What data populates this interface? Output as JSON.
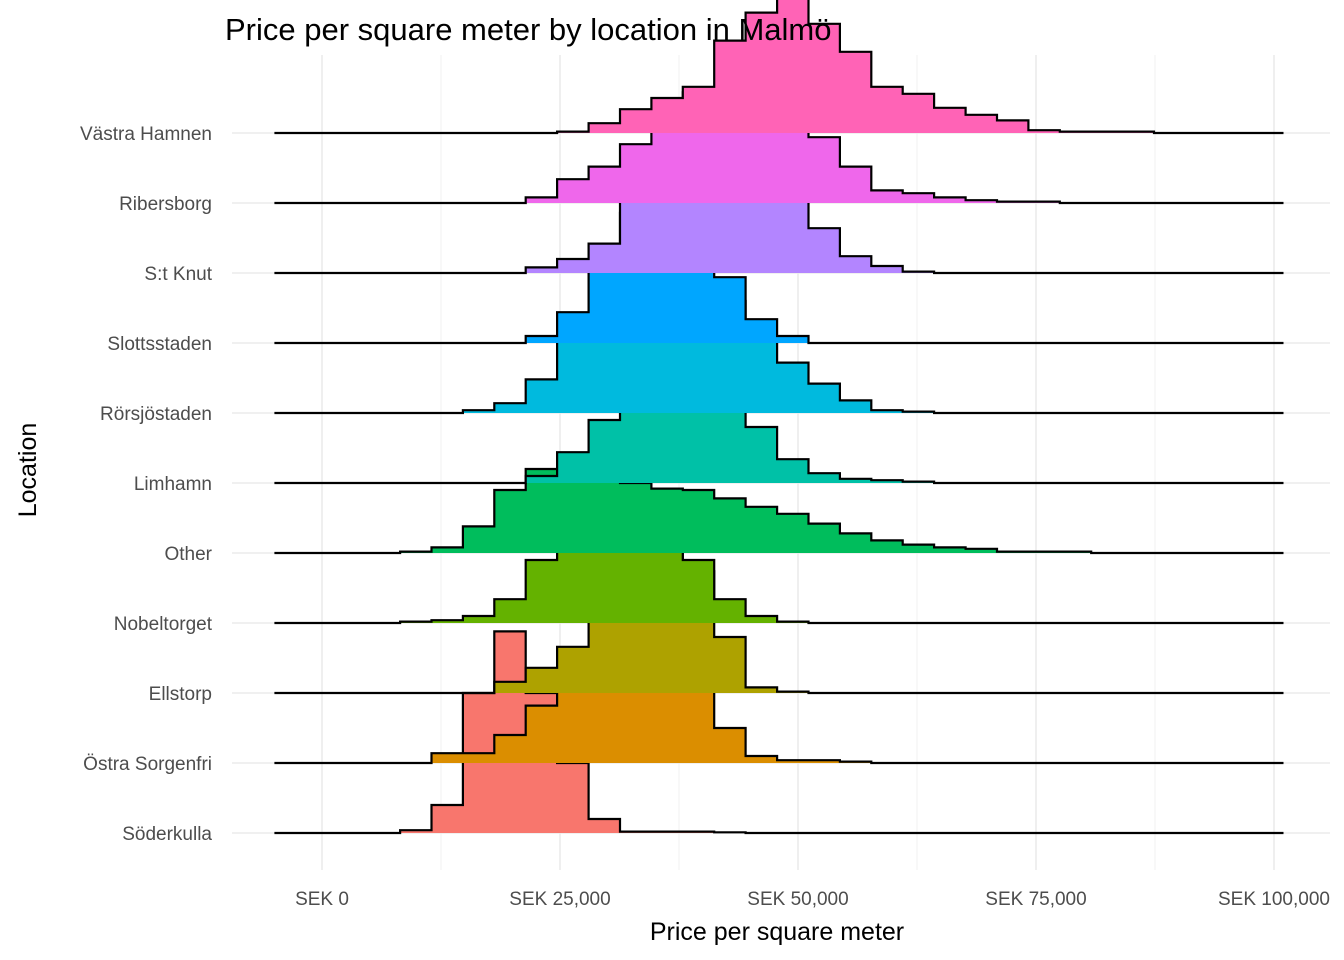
{
  "chart_data": {
    "type": "ridgeline-histogram",
    "title": "Price per square meter by location in Malmö",
    "xlabel": "Price per square meter",
    "ylabel": "Location",
    "x_ticks": [
      0,
      25000,
      50000,
      75000,
      100000
    ],
    "x_tick_labels": [
      "SEK 0",
      "SEK 25,000",
      "SEK 50,000",
      "SEK 75,000",
      "SEK 100,000"
    ],
    "xlim": [
      -5000,
      101000
    ],
    "grid": true,
    "legend": "none",
    "bin_width": 3300,
    "bin_start": -5000,
    "series": [
      {
        "name": "Söderkulla",
        "color": "#F8766D",
        "values": [
          0,
          0,
          0,
          0,
          0.02,
          0.2,
          1.0,
          1.44,
          1.0,
          0.5,
          0.1,
          0.01,
          0.01,
          0.01,
          0.005,
          0,
          0,
          0,
          0,
          0,
          0,
          0,
          0,
          0,
          0,
          0,
          0,
          0,
          0,
          0,
          0,
          0,
          0
        ]
      },
      {
        "name": "Östra Sorgenfri",
        "color": "#DB8E00",
        "values": [
          0,
          0,
          0,
          0,
          0,
          0.07,
          0.07,
          0.2,
          0.41,
          0.76,
          1.37,
          1.37,
          0.9,
          0.55,
          0.25,
          0.05,
          0.02,
          0.02,
          0.01,
          0,
          0,
          0,
          0,
          0,
          0,
          0,
          0,
          0,
          0,
          0,
          0,
          0,
          0
        ]
      },
      {
        "name": "Ellstorp",
        "color": "#AEA200",
        "values": [
          0,
          0,
          0,
          0,
          0,
          0,
          0,
          0.08,
          0.18,
          0.33,
          1.42,
          1.6,
          1.42,
          0.87,
          0.4,
          0.04,
          0.01,
          0,
          0,
          0,
          0,
          0,
          0,
          0,
          0,
          0,
          0,
          0,
          0,
          0,
          0,
          0,
          0
        ]
      },
      {
        "name": "Nobeltorget",
        "color": "#64B200",
        "values": [
          0,
          0,
          0,
          0,
          0.01,
          0.02,
          0.05,
          0.17,
          0.45,
          0.9,
          1.17,
          1.1,
          0.89,
          0.45,
          0.17,
          0.05,
          0.01,
          0,
          0,
          0,
          0,
          0,
          0,
          0,
          0,
          0,
          0,
          0,
          0,
          0,
          0,
          0,
          0
        ]
      },
      {
        "name": "Other",
        "color": "#00BD5C",
        "values": [
          0,
          0,
          0,
          0,
          0.01,
          0.04,
          0.19,
          0.45,
          0.6,
          0.62,
          0.56,
          0.5,
          0.46,
          0.45,
          0.39,
          0.33,
          0.28,
          0.21,
          0.14,
          0.09,
          0.06,
          0.04,
          0.03,
          0.01,
          0.01,
          0.01,
          0,
          0,
          0,
          0,
          0,
          0,
          0
        ]
      },
      {
        "name": "Limhamn",
        "color": "#00C1A7",
        "values": [
          0,
          0,
          0,
          0,
          0,
          0,
          0,
          0,
          0.05,
          0.22,
          0.45,
          0.97,
          1.02,
          0.87,
          0.73,
          0.4,
          0.17,
          0.07,
          0.03,
          0.02,
          0.01,
          0,
          0,
          0,
          0,
          0,
          0,
          0,
          0,
          0,
          0,
          0,
          0
        ]
      },
      {
        "name": "Rörsjöstaden",
        "color": "#00BADE",
        "values": [
          0,
          0,
          0,
          0,
          0,
          0,
          0.02,
          0.07,
          0.24,
          0.57,
          0.8,
          0.83,
          0.86,
          0.9,
          0.8,
          0.51,
          0.36,
          0.21,
          0.09,
          0.02,
          0.01,
          0,
          0,
          0,
          0,
          0,
          0,
          0,
          0,
          0,
          0,
          0,
          0
        ]
      },
      {
        "name": "Slottsstaden",
        "color": "#00A6FF",
        "values": [
          0,
          0,
          0,
          0,
          0,
          0,
          0,
          0,
          0.05,
          0.22,
          0.66,
          0.93,
          0.83,
          0.66,
          0.47,
          0.17,
          0.05,
          0,
          0,
          0,
          0,
          0,
          0,
          0,
          0,
          0,
          0,
          0,
          0,
          0,
          0,
          0,
          0
        ]
      },
      {
        "name": "S:t Knut",
        "color": "#B385FF",
        "values": [
          0,
          0,
          0,
          0,
          0,
          0,
          0,
          0,
          0.04,
          0.1,
          0.21,
          0.55,
          0.7,
          0.9,
          1.0,
          0.57,
          0.56,
          0.32,
          0.12,
          0.05,
          0.01,
          0,
          0,
          0,
          0,
          0,
          0,
          0,
          0,
          0,
          0,
          0,
          0
        ]
      },
      {
        "name": "Ribersborg",
        "color": "#EF67EB",
        "values": [
          0,
          0,
          0,
          0,
          0,
          0,
          0,
          0,
          0.04,
          0.17,
          0.26,
          0.42,
          0.62,
          0.79,
          0.77,
          0.68,
          0.68,
          0.47,
          0.26,
          0.09,
          0.07,
          0.04,
          0.02,
          0.01,
          0.01,
          0,
          0,
          0,
          0,
          0,
          0,
          0,
          0
        ]
      },
      {
        "name": "Västra Hamnen",
        "color": "#FF63B6",
        "values": [
          0,
          0,
          0,
          0,
          0,
          0,
          0,
          0,
          0,
          0.01,
          0.07,
          0.17,
          0.25,
          0.33,
          0.66,
          0.86,
          0.98,
          0.78,
          0.58,
          0.33,
          0.28,
          0.18,
          0.13,
          0.09,
          0.02,
          0.01,
          0.01,
          0.01,
          0,
          0,
          0,
          0,
          0
        ]
      }
    ]
  }
}
